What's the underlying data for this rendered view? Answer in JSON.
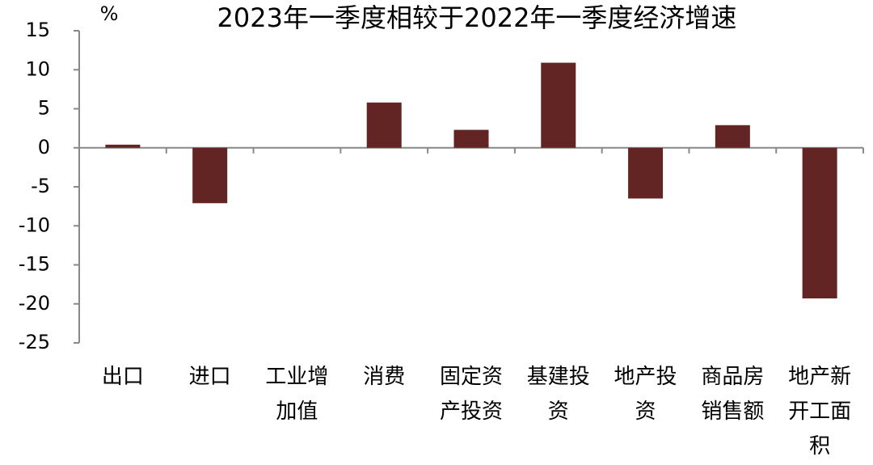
{
  "chart_data": {
    "type": "bar",
    "title": "2023年一季度相较于2022年一季度经济增速",
    "y_unit": "%",
    "categories": [
      "出口",
      "进口",
      "工业增加值",
      "消费",
      "固定资产投资",
      "基建投资",
      "地产投资",
      "商品房销售额",
      "地产新开工面积"
    ],
    "values": [
      0.4,
      -7.1,
      0,
      5.8,
      2.3,
      10.9,
      -6.5,
      2.9,
      -19.3
    ],
    "color": "#632523",
    "ylim": [
      -25,
      15
    ],
    "yticks": [
      -25,
      -20,
      -15,
      -10,
      -5,
      0,
      5,
      10,
      15
    ],
    "grid": false
  }
}
